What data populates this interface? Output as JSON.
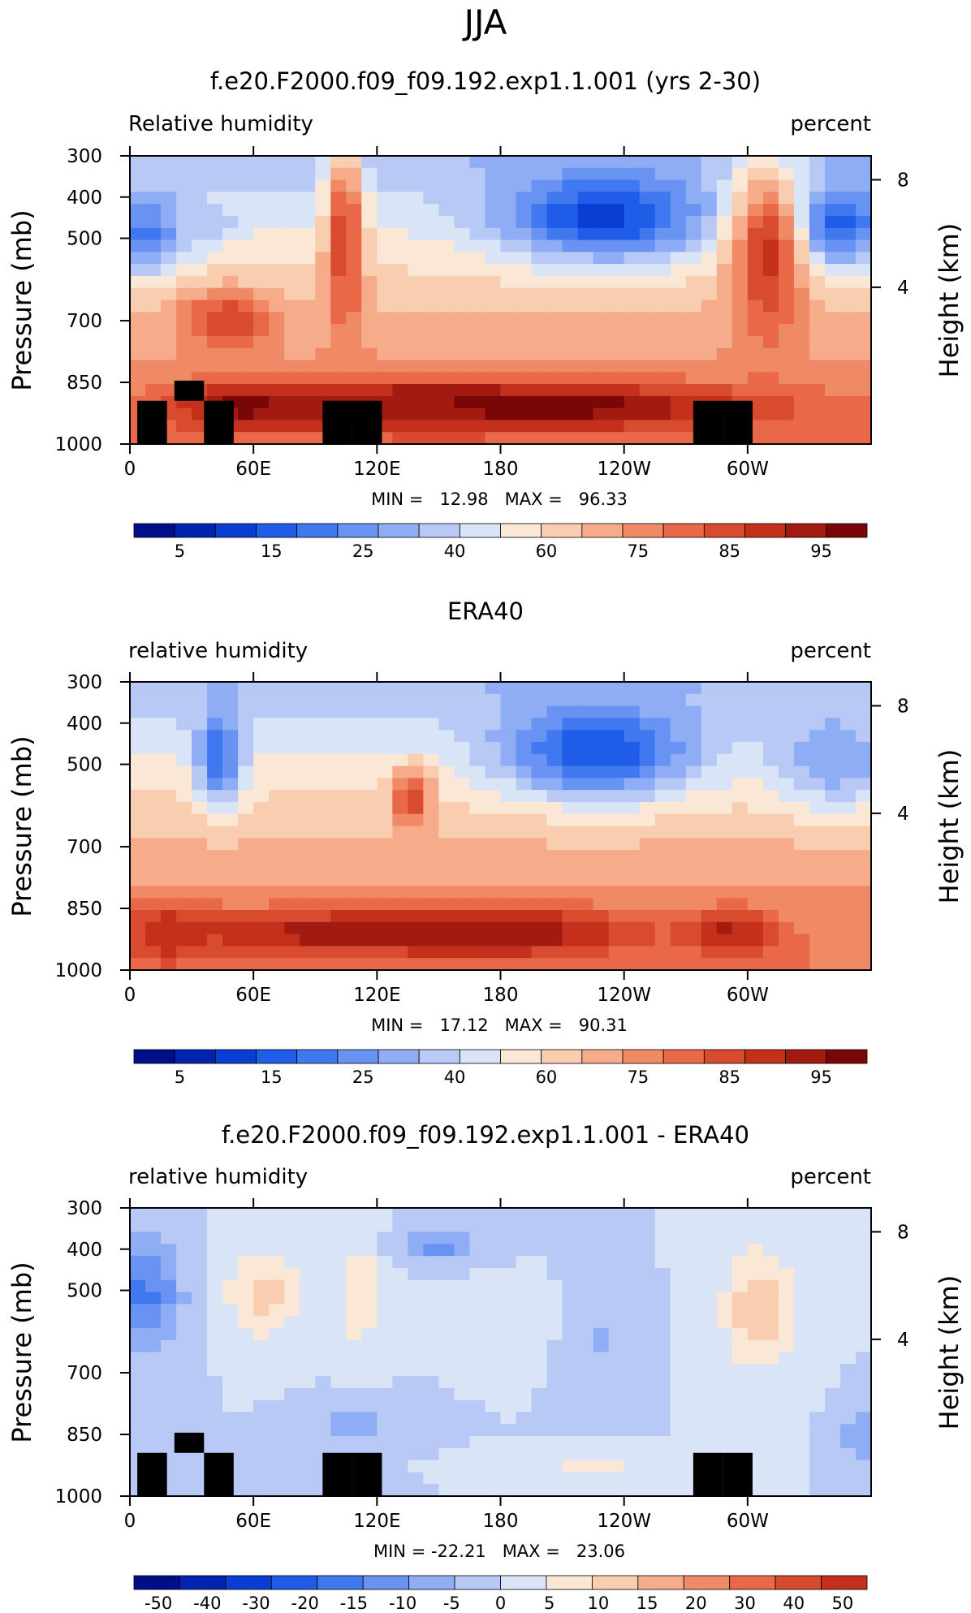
{
  "page_title": "JJA",
  "chart_data": [
    {
      "type": "heatmap",
      "title": "f.e20.F2000.f09_f09.192.exp1.1.001 (yrs 2-30)",
      "left_label": "Relative humidity",
      "right_label": "percent",
      "ylabel": "Pressure (mb)",
      "ylabel_right": "Height (km)",
      "x_ticks": [
        "0",
        "60E",
        "120E",
        "180",
        "120W",
        "60W"
      ],
      "y_ticks": [
        "300",
        "400",
        "500",
        "700",
        "850",
        "1000"
      ],
      "y_ticks_right": [
        "8",
        "4"
      ],
      "stats_text": "MIN =   12.98   MAX =   96.33",
      "min": 12.98,
      "max": 96.33,
      "colorbar_levels": [
        "5",
        "15",
        "25",
        "40",
        "60",
        "75",
        "85",
        "95"
      ],
      "colorbar_colors": [
        "#000e8a",
        "#0024b0",
        "#0a3ed2",
        "#1f5ce8",
        "#3f78ef",
        "#6993f2",
        "#8fadf4",
        "#b7c9f4",
        "#d9e4f7",
        "#fbe7d5",
        "#f9cdb0",
        "#f6ac8b",
        "#f08a66",
        "#e86847",
        "#d94b2e",
        "#c4301b",
        "#a21a10",
        "#7a0707"
      ],
      "topography": [
        [
          0.03,
          0.85,
          1
        ],
        [
          0.08,
          0.78,
          0.85
        ],
        [
          0.12,
          0.85,
          1
        ],
        [
          0.28,
          0.85,
          1
        ],
        [
          0.32,
          0.85,
          1
        ],
        [
          0.78,
          0.85,
          1
        ],
        [
          0.82,
          0.85,
          1
        ]
      ],
      "blobs": [
        [
          0.02,
          0.27,
          0.06,
          0.14,
          28
        ],
        [
          0.11,
          0.24,
          0.04,
          0.05,
          40
        ],
        [
          0.64,
          0.21,
          0.14,
          0.15,
          18
        ],
        [
          0.95,
          0.24,
          0.07,
          0.14,
          22
        ],
        [
          0.13,
          0.57,
          0.06,
          0.1,
          80
        ],
        [
          0.29,
          0.3,
          0.025,
          0.35,
          80
        ],
        [
          0.86,
          0.35,
          0.05,
          0.3,
          82
        ],
        [
          0.55,
          0.87,
          0.3,
          0.08,
          94
        ],
        [
          0.38,
          0.87,
          0.15,
          0.08,
          90
        ],
        [
          0.16,
          0.87,
          0.1,
          0.08,
          92
        ]
      ]
    },
    {
      "type": "heatmap",
      "title": "ERA40",
      "left_label": "relative humidity",
      "right_label": "percent",
      "ylabel": "Pressure (mb)",
      "ylabel_right": "Height (km)",
      "x_ticks": [
        "0",
        "60E",
        "120E",
        "180",
        "120W",
        "60W"
      ],
      "y_ticks": [
        "300",
        "400",
        "500",
        "700",
        "850",
        "1000"
      ],
      "y_ticks_right": [
        "8",
        "4"
      ],
      "stats_text": "MIN =   17.12   MAX =   90.31",
      "min": 17.12,
      "max": 90.31,
      "colorbar_levels": [
        "5",
        "15",
        "25",
        "40",
        "60",
        "75",
        "85",
        "95"
      ],
      "colorbar_colors": [
        "#000e8a",
        "#0024b0",
        "#0a3ed2",
        "#1f5ce8",
        "#3f78ef",
        "#6993f2",
        "#8fadf4",
        "#b7c9f4",
        "#d9e4f7",
        "#fbe7d5",
        "#f9cdb0",
        "#f6ac8b",
        "#f08a66",
        "#e86847",
        "#d94b2e",
        "#c4301b",
        "#a21a10",
        "#7a0707"
      ],
      "topography": [],
      "blobs": [
        [
          0.12,
          0.26,
          0.03,
          0.16,
          25
        ],
        [
          0.63,
          0.24,
          0.13,
          0.16,
          20
        ],
        [
          0.95,
          0.27,
          0.08,
          0.16,
          35
        ],
        [
          0.38,
          0.4,
          0.025,
          0.1,
          80
        ],
        [
          0.3,
          0.87,
          0.25,
          0.08,
          88
        ],
        [
          0.52,
          0.87,
          0.16,
          0.08,
          88
        ],
        [
          0.81,
          0.87,
          0.06,
          0.08,
          86
        ],
        [
          0.05,
          0.87,
          0.05,
          0.1,
          85
        ]
      ]
    },
    {
      "type": "heatmap",
      "title": "f.e20.F2000.f09_f09.192.exp1.1.001 - ERA40",
      "left_label": "relative humidity",
      "right_label": "percent",
      "ylabel": "Pressure (mb)",
      "ylabel_right": "Height (km)",
      "x_ticks": [
        "0",
        "60E",
        "120E",
        "180",
        "120W",
        "60W"
      ],
      "y_ticks": [
        "300",
        "400",
        "500",
        "700",
        "850",
        "1000"
      ],
      "y_ticks_right": [
        "8",
        "4"
      ],
      "stats_text": "MIN = -22.21   MAX =   23.06",
      "min": -22.21,
      "max": 23.06,
      "colorbar_levels": [
        "-50",
        "-40",
        "-30",
        "-20",
        "-15",
        "-10",
        "-5",
        "0",
        "5",
        "10",
        "15",
        "20",
        "30",
        "40",
        "50"
      ],
      "colorbar_colors": [
        "#000e8a",
        "#0024b0",
        "#0a3ed2",
        "#1f5ce8",
        "#3f78ef",
        "#6993f2",
        "#8fadf4",
        "#b7c9f4",
        "#d9e4f7",
        "#fbe7d5",
        "#f9cdb0",
        "#f6ac8b",
        "#f08a66",
        "#e86847",
        "#d94b2e",
        "#c4301b"
      ],
      "topography": [
        [
          0.03,
          0.85,
          1
        ],
        [
          0.08,
          0.78,
          0.85
        ],
        [
          0.12,
          0.85,
          1
        ],
        [
          0.28,
          0.85,
          1
        ],
        [
          0.32,
          0.85,
          1
        ],
        [
          0.78,
          0.85,
          1
        ],
        [
          0.82,
          0.85,
          1
        ]
      ],
      "blobs": [
        [
          0.02,
          0.3,
          0.05,
          0.2,
          -20
        ],
        [
          0.42,
          0.13,
          0.05,
          0.05,
          -15
        ],
        [
          0.18,
          0.3,
          0.05,
          0.15,
          15
        ],
        [
          0.31,
          0.3,
          0.025,
          0.2,
          12
        ],
        [
          0.85,
          0.35,
          0.05,
          0.2,
          18
        ],
        [
          0.3,
          0.75,
          0.06,
          0.07,
          -10
        ],
        [
          0.64,
          0.45,
          0.04,
          0.15,
          -7
        ],
        [
          0.99,
          0.78,
          0.03,
          0.1,
          -12
        ],
        [
          0.63,
          0.88,
          0.1,
          0.03,
          10
        ],
        [
          0.5,
          0.4,
          0.05,
          0.1,
          5
        ]
      ]
    }
  ]
}
